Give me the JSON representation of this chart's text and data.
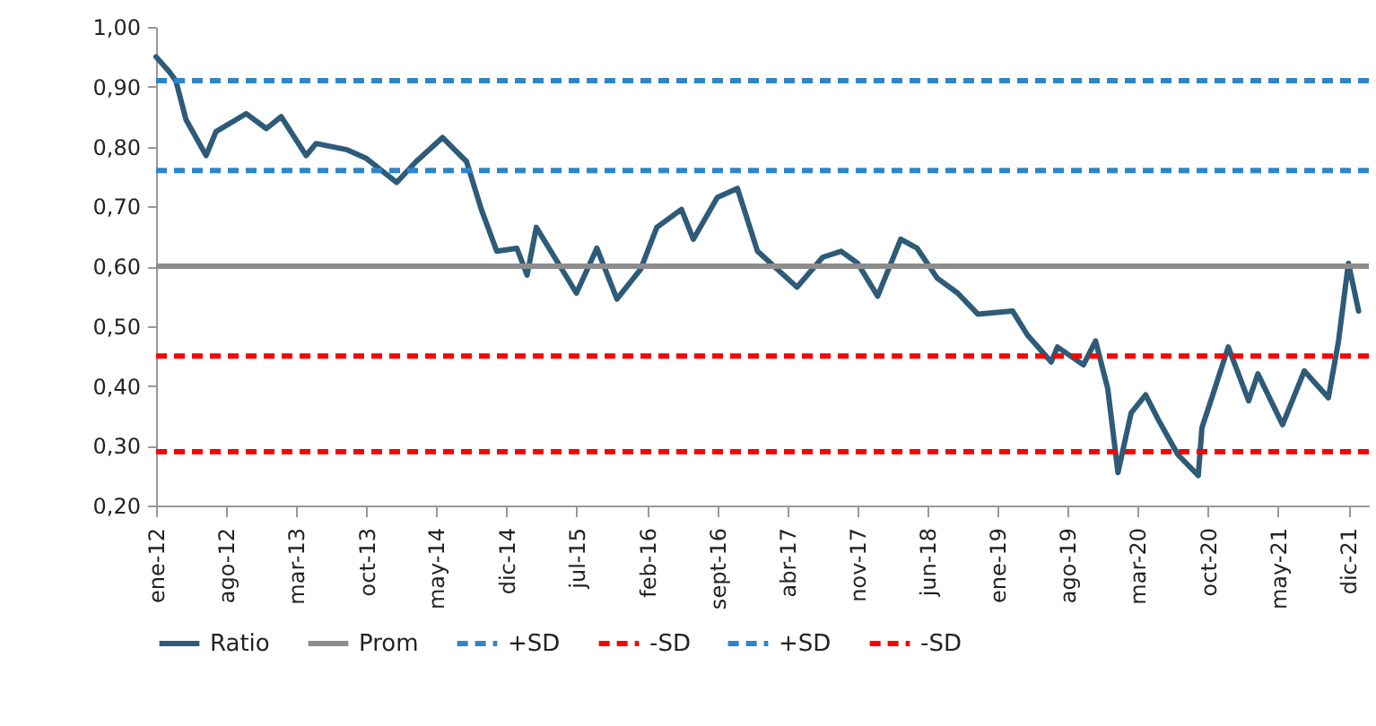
{
  "chart_data": {
    "type": "line",
    "x": [
      "2012-01-01",
      "2012-02-10",
      "2012-03-01",
      "2012-04-01",
      "2012-06-01",
      "2012-07-01",
      "2012-10-01",
      "2012-12-01",
      "2013-01-15",
      "2013-04-01",
      "2013-05-01",
      "2013-08-01",
      "2013-10-01",
      "2014-01-01",
      "2014-03-01",
      "2014-05-20",
      "2014-08-01",
      "2014-09-15",
      "2014-11-01",
      "2015-01-01",
      "2015-02-01",
      "2015-03-01",
      "2015-07-01",
      "2015-09-01",
      "2015-11-01",
      "2016-01-12",
      "2016-03-01",
      "2016-05-15",
      "2016-06-20",
      "2016-09-01",
      "2016-11-01",
      "2017-01-01",
      "2017-05-01",
      "2017-07-18",
      "2017-09-12",
      "2017-11-01",
      "2018-01-01",
      "2018-03-12",
      "2018-05-01",
      "2018-07-01",
      "2018-09-01",
      "2018-11-01",
      "2019-02-15",
      "2019-04-01",
      "2019-06-12",
      "2019-07-01",
      "2019-09-18",
      "2019-10-25",
      "2019-12-01",
      "2020-01-01",
      "2020-02-10",
      "2020-03-25",
      "2020-05-01",
      "2020-07-01",
      "2020-09-01",
      "2020-09-12",
      "2020-10-15",
      "2020-12-01",
      "2021-02-01",
      "2021-03-01",
      "2021-05-15",
      "2021-07-20",
      "2021-10-01",
      "2021-11-01",
      "2021-12-01",
      "2022-01-01"
    ],
    "series": [
      {
        "name": "Ratio",
        "color": "#2e5b78",
        "values": [
          0.95,
          0.925,
          0.91,
          0.845,
          0.785,
          0.825,
          0.855,
          0.83,
          0.85,
          0.785,
          0.805,
          0.795,
          0.78,
          0.74,
          0.775,
          0.815,
          0.775,
          0.695,
          0.625,
          0.63,
          0.585,
          0.665,
          0.555,
          0.63,
          0.545,
          0.595,
          0.665,
          0.695,
          0.645,
          0.715,
          0.73,
          0.625,
          0.565,
          0.615,
          0.625,
          0.605,
          0.55,
          0.645,
          0.63,
          0.58,
          0.555,
          0.52,
          0.525,
          0.485,
          0.44,
          0.465,
          0.435,
          0.475,
          0.395,
          0.255,
          0.355,
          0.385,
          0.345,
          0.285,
          0.25,
          0.33,
          0.385,
          0.465,
          0.375,
          0.42,
          0.335,
          0.425,
          0.38,
          0.475,
          0.605,
          0.525
        ]
      }
    ],
    "ref_lines": [
      {
        "axis": "y",
        "value": 0.6,
        "label": "Prom",
        "color": "#8c8c8c",
        "line_style": "solid"
      },
      {
        "axis": "y",
        "value": 0.91,
        "label": "+SD",
        "color": "#2e86c8",
        "line_style": "dashed"
      },
      {
        "axis": "y",
        "value": 0.45,
        "label": "-SD",
        "color": "#ff0000",
        "line_style": "dashed"
      },
      {
        "axis": "y",
        "value": 0.76,
        "label": "+SD",
        "color": "#2e86c8",
        "line_style": "dashed"
      },
      {
        "axis": "y",
        "value": 0.29,
        "label": "-SD",
        "color": "#ff0000",
        "line_style": "dashed"
      }
    ],
    "xlim": [
      "2012-01-01",
      "2022-02-01"
    ],
    "xticks": [
      {
        "value": "2012-01-01",
        "label": "ene-12"
      },
      {
        "value": "2012-08-01",
        "label": "ago-12"
      },
      {
        "value": "2013-03-01",
        "label": "mar-13"
      },
      {
        "value": "2013-10-01",
        "label": "oct-13"
      },
      {
        "value": "2014-05-01",
        "label": "may-14"
      },
      {
        "value": "2014-12-01",
        "label": "dic-14"
      },
      {
        "value": "2015-07-01",
        "label": "jul-15"
      },
      {
        "value": "2016-02-01",
        "label": "feb-16"
      },
      {
        "value": "2016-09-01",
        "label": "sept-16"
      },
      {
        "value": "2017-04-01",
        "label": "abr-17"
      },
      {
        "value": "2017-11-01",
        "label": "nov-17"
      },
      {
        "value": "2018-06-01",
        "label": "jun-18"
      },
      {
        "value": "2019-01-01",
        "label": "ene-19"
      },
      {
        "value": "2019-08-01",
        "label": "ago-19"
      },
      {
        "value": "2020-03-01",
        "label": "mar-20"
      },
      {
        "value": "2020-10-01",
        "label": "oct-20"
      },
      {
        "value": "2021-05-01",
        "label": "may-21"
      },
      {
        "value": "2021-12-01",
        "label": "dic-21"
      }
    ],
    "ylim": [
      0.2,
      1.0
    ],
    "yticks": [
      {
        "value": 0.2,
        "label": "0,20"
      },
      {
        "value": 0.3,
        "label": "0,30"
      },
      {
        "value": 0.4,
        "label": "0,40"
      },
      {
        "value": 0.5,
        "label": "0,50"
      },
      {
        "value": 0.6,
        "label": "0,60"
      },
      {
        "value": 0.7,
        "label": "0,70"
      },
      {
        "value": 0.8,
        "label": "0,80"
      },
      {
        "value": 0.9,
        "label": "0,90"
      },
      {
        "value": 1.0,
        "label": "1,00"
      }
    ],
    "legend": "bottom",
    "marker": "none",
    "line_style": "solid"
  }
}
